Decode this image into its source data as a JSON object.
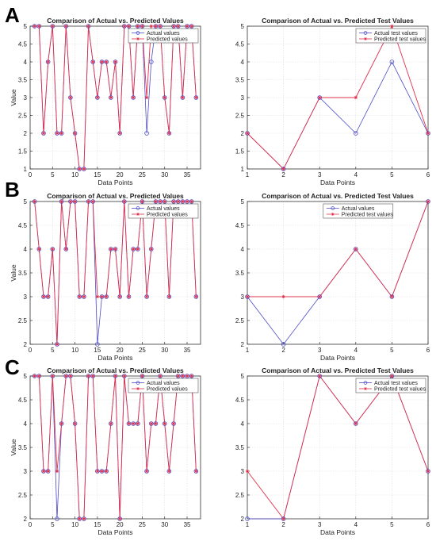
{
  "panel_labels": [
    "A",
    "B",
    "C"
  ],
  "colors": {
    "actual": "#4a4ac8",
    "predicted": "#e0304a",
    "grid": "#dddddd",
    "axis": "#333333"
  },
  "chart_data": [
    {
      "type": "line",
      "panel": "A",
      "title": "Comparison of Actual vs. Predicted Values",
      "xlabel": "Data Points",
      "ylabel": "Value",
      "xlim": [
        0,
        38
      ],
      "ylim": [
        1,
        5
      ],
      "xticks": [
        0,
        5,
        10,
        15,
        20,
        25,
        30,
        35
      ],
      "yticks": [
        1,
        1.5,
        2,
        2.5,
        3,
        3.5,
        4,
        4.5,
        5
      ],
      "grid": true,
      "legend_position": "top-right",
      "x": [
        1,
        2,
        3,
        4,
        5,
        6,
        7,
        8,
        9,
        10,
        11,
        12,
        13,
        14,
        15,
        16,
        17,
        18,
        19,
        20,
        21,
        22,
        23,
        24,
        25,
        26,
        27,
        28,
        29,
        30,
        31,
        32,
        33,
        34,
        35,
        36,
        37
      ],
      "series": [
        {
          "name": "Actual values",
          "marker": "circle",
          "values": [
            5,
            5,
            2,
            4,
            5,
            2,
            2,
            5,
            3,
            2,
            1,
            1,
            5,
            4,
            3,
            4,
            4,
            3,
            4,
            2,
            5,
            5,
            3,
            5,
            5,
            2,
            4,
            5,
            5,
            3,
            2,
            5,
            5,
            3,
            5,
            5,
            3
          ]
        },
        {
          "name": "Predicted values",
          "marker": "star",
          "values": [
            5,
            5,
            2,
            4,
            5,
            2,
            2,
            5,
            3,
            2,
            1,
            1,
            5,
            4,
            3,
            4,
            4,
            3,
            4,
            2,
            5,
            5,
            3,
            5,
            5,
            3,
            5,
            5,
            5,
            3,
            2,
            5,
            5,
            3,
            5,
            5,
            3
          ]
        }
      ]
    },
    {
      "type": "line",
      "panel": "A",
      "title": "Comparison of Actual vs. Predicted Test Values",
      "xlabel": "Data Points",
      "ylabel": "",
      "xlim": [
        1,
        6
      ],
      "ylim": [
        1,
        5
      ],
      "xticks": [
        1,
        2,
        3,
        4,
        5,
        6
      ],
      "yticks": [
        1,
        1.5,
        2,
        2.5,
        3,
        3.5,
        4,
        4.5,
        5
      ],
      "grid": true,
      "legend_position": "top-right",
      "x": [
        1,
        2,
        3,
        4,
        5,
        6
      ],
      "series": [
        {
          "name": "Actual test values",
          "marker": "circle",
          "values": [
            2,
            1,
            3,
            2,
            4,
            2
          ]
        },
        {
          "name": "Predicted test values",
          "marker": "star",
          "values": [
            2,
            1,
            3,
            3,
            5,
            2
          ]
        }
      ]
    },
    {
      "type": "line",
      "panel": "B",
      "title": "Comparison of Actual vs. Predicted Values",
      "xlabel": "Data Points",
      "ylabel": "Value",
      "xlim": [
        0,
        38
      ],
      "ylim": [
        2,
        5
      ],
      "xticks": [
        0,
        5,
        10,
        15,
        20,
        25,
        30,
        35
      ],
      "yticks": [
        2,
        2.5,
        3,
        3.5,
        4,
        4.5,
        5
      ],
      "grid": true,
      "legend_position": "top-right",
      "x": [
        1,
        2,
        3,
        4,
        5,
        6,
        7,
        8,
        9,
        10,
        11,
        12,
        13,
        14,
        15,
        16,
        17,
        18,
        19,
        20,
        21,
        22,
        23,
        24,
        25,
        26,
        27,
        28,
        29,
        30,
        31,
        32,
        33,
        34,
        35,
        36,
        37
      ],
      "series": [
        {
          "name": "Actual values",
          "marker": "circle",
          "values": [
            5,
            4,
            3,
            3,
            4,
            2,
            5,
            4,
            5,
            5,
            3,
            3,
            5,
            5,
            2,
            3,
            3,
            4,
            4,
            3,
            5,
            3,
            4,
            4,
            5,
            3,
            4,
            5,
            5,
            5,
            3,
            5,
            5,
            5,
            5,
            5,
            3
          ]
        },
        {
          "name": "Predicted values",
          "marker": "star",
          "values": [
            5,
            4,
            3,
            3,
            4,
            2,
            5,
            4,
            5,
            5,
            3,
            3,
            5,
            5,
            3,
            3,
            3,
            4,
            4,
            3,
            5,
            3,
            4,
            4,
            5,
            3,
            4,
            5,
            5,
            5,
            3,
            5,
            5,
            5,
            5,
            5,
            3
          ]
        }
      ]
    },
    {
      "type": "line",
      "panel": "B",
      "title": "Comparison of Actual vs. Predicted Test Values",
      "xlabel": "Data Points",
      "ylabel": "",
      "xlim": [
        1,
        6
      ],
      "ylim": [
        2,
        5
      ],
      "xticks": [
        1,
        2,
        3,
        4,
        5,
        6
      ],
      "yticks": [
        2,
        2.5,
        3,
        3.5,
        4,
        4.5,
        5
      ],
      "grid": true,
      "legend_position": "top-left",
      "x": [
        1,
        2,
        3,
        4,
        5,
        6
      ],
      "series": [
        {
          "name": "Actual values",
          "marker": "circle",
          "values": [
            3,
            2,
            3,
            4,
            3,
            5
          ]
        },
        {
          "name": "Predicted test values",
          "marker": "star",
          "values": [
            3,
            3,
            3,
            4,
            3,
            5
          ]
        }
      ]
    },
    {
      "type": "line",
      "panel": "C",
      "title": "Comparison of Actual vs. Predicted Values",
      "xlabel": "Data Points",
      "ylabel": "Value",
      "xlim": [
        0,
        38
      ],
      "ylim": [
        2,
        5
      ],
      "xticks": [
        0,
        5,
        10,
        15,
        20,
        25,
        30,
        35
      ],
      "yticks": [
        2,
        2.5,
        3,
        3.5,
        4,
        4.5,
        5
      ],
      "grid": true,
      "legend_position": "top-right",
      "x": [
        1,
        2,
        3,
        4,
        5,
        6,
        7,
        8,
        9,
        10,
        11,
        12,
        13,
        14,
        15,
        16,
        17,
        18,
        19,
        20,
        21,
        22,
        23,
        24,
        25,
        26,
        27,
        28,
        29,
        30,
        31,
        32,
        33,
        34,
        35,
        36,
        37
      ],
      "series": [
        {
          "name": "Actual values",
          "marker": "circle",
          "values": [
            5,
            5,
            3,
            3,
            5,
            2,
            4,
            5,
            5,
            4,
            2,
            2,
            5,
            5,
            3,
            3,
            3,
            4,
            5,
            2,
            5,
            4,
            4,
            4,
            5,
            3,
            4,
            4,
            5,
            4,
            3,
            4,
            5,
            5,
            5,
            5,
            3
          ]
        },
        {
          "name": "Predicted values",
          "marker": "star",
          "values": [
            5,
            5,
            3,
            3,
            5,
            3,
            4,
            5,
            5,
            4,
            2,
            2,
            5,
            5,
            3,
            3,
            3,
            4,
            5,
            2,
            5,
            4,
            4,
            4,
            5,
            3,
            4,
            4,
            5,
            4,
            3,
            4,
            5,
            5,
            5,
            5,
            3
          ]
        }
      ]
    },
    {
      "type": "line",
      "panel": "C",
      "title": "Comparison of Actual vs. Predicted Test Values",
      "xlabel": "Data Points",
      "ylabel": "",
      "xlim": [
        1,
        6
      ],
      "ylim": [
        2,
        5
      ],
      "xticks": [
        1,
        2,
        3,
        4,
        5,
        6
      ],
      "yticks": [
        2,
        2.5,
        3,
        3.5,
        4,
        4.5,
        5
      ],
      "grid": true,
      "legend_position": "top-right",
      "x": [
        1,
        2,
        3,
        4,
        5,
        6
      ],
      "series": [
        {
          "name": "Actual test values",
          "marker": "circle",
          "values": [
            2,
            2,
            5,
            4,
            5,
            3
          ]
        },
        {
          "name": "Predicted test values",
          "marker": "star",
          "values": [
            3,
            2,
            5,
            4,
            5,
            3
          ]
        }
      ]
    }
  ]
}
